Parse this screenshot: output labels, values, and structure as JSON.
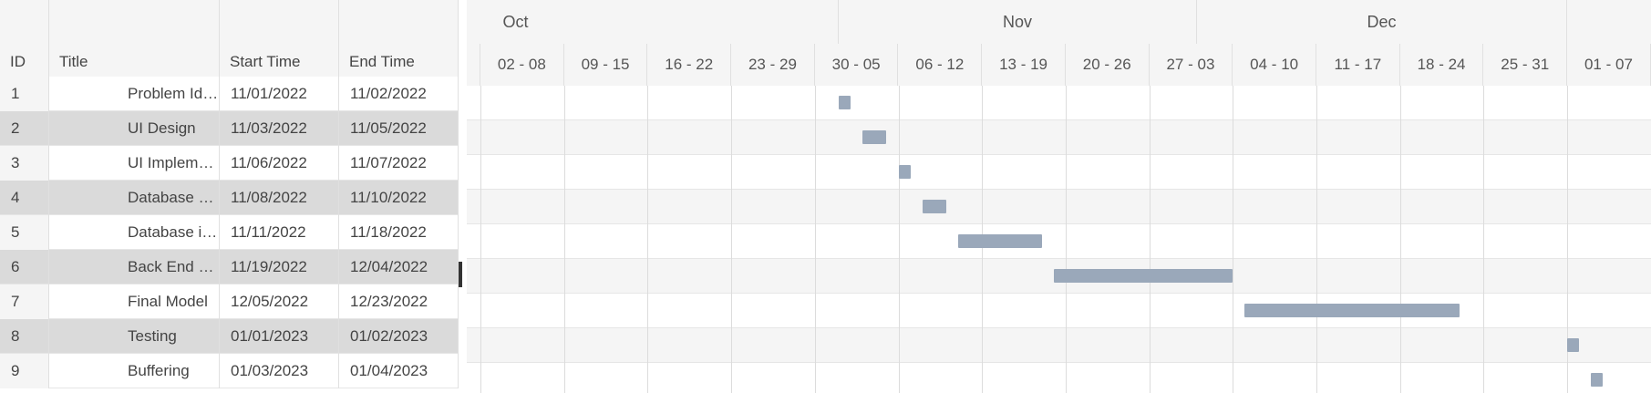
{
  "grid": {
    "columns": [
      {
        "key": "id",
        "label": "ID"
      },
      {
        "key": "title",
        "label": "Title"
      },
      {
        "key": "start",
        "label": "Start Time"
      },
      {
        "key": "end",
        "label": "End Time"
      }
    ],
    "rows": [
      {
        "id": "1",
        "title": "Problem Identifi...",
        "start": "11/01/2022",
        "end": "11/02/2022"
      },
      {
        "id": "2",
        "title": "UI Design",
        "start": "11/03/2022",
        "end": "11/05/2022"
      },
      {
        "id": "3",
        "title": "UI Implementati...",
        "start": "11/06/2022",
        "end": "11/07/2022"
      },
      {
        "id": "4",
        "title": "Database Design",
        "start": "11/08/2022",
        "end": "11/10/2022"
      },
      {
        "id": "5",
        "title": "Database imple...",
        "start": "11/11/2022",
        "end": "11/18/2022"
      },
      {
        "id": "6",
        "title": "Back End Setting",
        "start": "11/19/2022",
        "end": "12/04/2022"
      },
      {
        "id": "7",
        "title": "Final Model",
        "start": "12/05/2022",
        "end": "12/23/2022"
      },
      {
        "id": "8",
        "title": "Testing",
        "start": "01/01/2023",
        "end": "01/02/2023"
      },
      {
        "id": "9",
        "title": "Buffering",
        "start": "01/03/2023",
        "end": "01/04/2023"
      }
    ]
  },
  "timeline": {
    "months": [
      "Oct",
      "Nov",
      "Dec",
      ""
    ],
    "weeks": [
      "02 - 08",
      "09 - 15",
      "16 - 22",
      "23 - 29",
      "30 - 05",
      "06 - 12",
      "13 - 19",
      "20 - 26",
      "27 - 03",
      "04 - 10",
      "11 - 17",
      "18 - 24",
      "25 - 31",
      "01 - 07"
    ],
    "bar_color": "#9aa8ba"
  }
}
